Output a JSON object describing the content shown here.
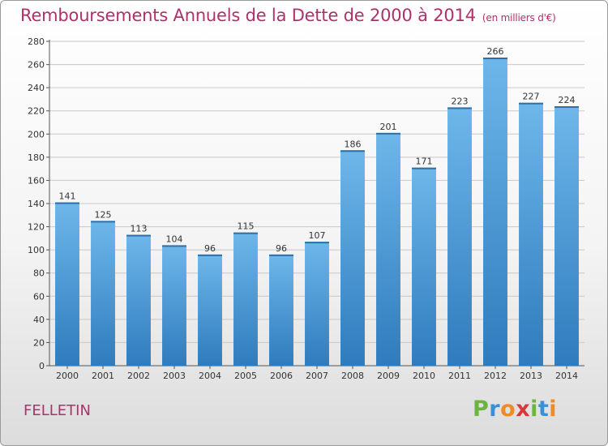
{
  "title": "Remboursements Annuels de la Dette de 2000 à 2014",
  "unit": "(en milliers d'€)",
  "commune": "FELLETIN",
  "brand": {
    "name": "Proxiti",
    "letter_colors": [
      "#6cb33f",
      "#3a8fd6",
      "#f08a24",
      "#d9383a",
      "#6cb33f",
      "#3a8fd6",
      "#f08a24"
    ]
  },
  "colors": {
    "title": "#b0306a",
    "bar_top": "#6db7ea",
    "bar_bottom": "#2f7bbd",
    "grid": "#c8c8c8"
  },
  "chart_data": {
    "type": "bar",
    "title": "Remboursements Annuels de la Dette de 2000 à 2014",
    "xlabel": "",
    "ylabel": "",
    "categories": [
      "2000",
      "2001",
      "2002",
      "2003",
      "2004",
      "2005",
      "2006",
      "2007",
      "2008",
      "2009",
      "2010",
      "2011",
      "2012",
      "2013",
      "2014"
    ],
    "values": [
      141,
      125,
      113,
      104,
      96,
      115,
      96,
      107,
      186,
      201,
      171,
      223,
      266,
      227,
      224
    ],
    "ylim": [
      0,
      280
    ],
    "yticks": [
      0,
      20,
      40,
      60,
      80,
      100,
      120,
      140,
      160,
      180,
      200,
      220,
      240,
      260,
      280
    ],
    "grid": true
  }
}
